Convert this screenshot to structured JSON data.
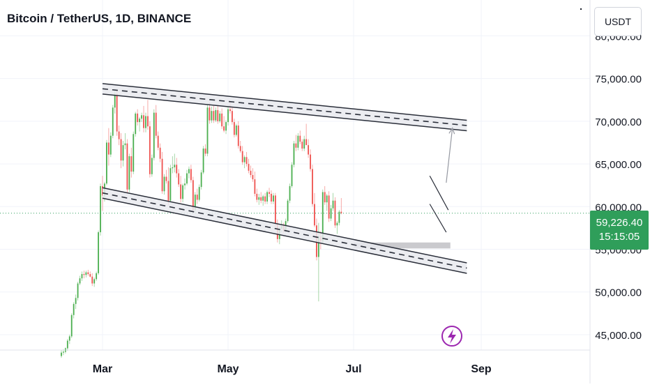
{
  "header": {
    "title": "Bitcoin / TetherUS, 1D, BINANCE"
  },
  "scale_controls": {
    "currency_label": "USDT"
  },
  "last_price": {
    "price": "59,226.40",
    "countdown": "15:15:05"
  },
  "colors": {
    "up": "#26a69a",
    "up_body": "#4caf50",
    "down": "#ef5350",
    "grid": "#f0f3fa",
    "axis_text": "#131722",
    "channel_line": "#2a2e39",
    "price_tag": "#2f9e5a",
    "lightning": "#9c27b0"
  },
  "icons": {
    "lightning": "lightning-icon"
  },
  "chart_data": {
    "type": "candlestick",
    "symbol": "BTCUSDT",
    "interval": "1D",
    "y_ticks": [
      "80,000.00",
      "75,000.00",
      "70,000.00",
      "65,000.00",
      "60,000.00",
      "55,000.00",
      "50,000.00",
      "45,000.00"
    ],
    "y_tick_values": [
      80000,
      75000,
      70000,
      65000,
      60000,
      55000,
      50000,
      45000
    ],
    "x_ticks": [
      "Mar",
      "May",
      "Jul",
      "Sep"
    ],
    "ylim": [
      43200,
      84200
    ],
    "last_price_value": 59226.4,
    "candles": [
      [
        42500,
        43200,
        42300,
        42900
      ],
      [
        42900,
        43300,
        42600,
        43000
      ],
      [
        43000,
        43500,
        42800,
        43400
      ],
      [
        43400,
        44500,
        43100,
        44300
      ],
      [
        44300,
        45000,
        43900,
        44800
      ],
      [
        44800,
        47500,
        44600,
        47300
      ],
      [
        47300,
        48800,
        46900,
        48600
      ],
      [
        48600,
        49700,
        48000,
        49300
      ],
      [
        49300,
        51200,
        49000,
        51000
      ],
      [
        51000,
        51900,
        50800,
        51600
      ],
      [
        51600,
        52400,
        51300,
        52100
      ],
      [
        52100,
        52500,
        51600,
        52000
      ],
      [
        52000,
        52500,
        51700,
        52300
      ],
      [
        52300,
        52600,
        51900,
        52100
      ],
      [
        52100,
        52400,
        51700,
        51800
      ],
      [
        51800,
        52200,
        50700,
        51000
      ],
      [
        51000,
        51700,
        50600,
        51500
      ],
      [
        51500,
        52400,
        51300,
        52200
      ],
      [
        52200,
        57200,
        52000,
        57000
      ],
      [
        57000,
        62700,
        56600,
        62400
      ],
      [
        62400,
        63600,
        59500,
        61300
      ],
      [
        61300,
        62900,
        60600,
        62700
      ],
      [
        62700,
        67800,
        62500,
        67500
      ],
      [
        67500,
        69200,
        64800,
        66100
      ],
      [
        66100,
        68700,
        65800,
        68300
      ],
      [
        68300,
        71900,
        68000,
        71600
      ],
      [
        71600,
        73800,
        70900,
        73200
      ],
      [
        73200,
        73700,
        68300,
        68800
      ],
      [
        68800,
        69500,
        67200,
        67900
      ],
      [
        67900,
        68600,
        64500,
        65400
      ],
      [
        65400,
        67700,
        64700,
        67200
      ],
      [
        67200,
        68600,
        66700,
        67400
      ],
      [
        67400,
        67900,
        61600,
        62000
      ],
      [
        62000,
        66200,
        61700,
        65900
      ],
      [
        65900,
        66900,
        63400,
        64100
      ],
      [
        64100,
        68800,
        63800,
        68500
      ],
      [
        68500,
        71100,
        68200,
        70900
      ],
      [
        70900,
        71400,
        69500,
        69900
      ],
      [
        69900,
        70500,
        68800,
        70300
      ],
      [
        70300,
        71000,
        69900,
        70700
      ],
      [
        70700,
        71800,
        68700,
        69200
      ],
      [
        69200,
        71000,
        68700,
        70600
      ],
      [
        70600,
        72500,
        69000,
        69400
      ],
      [
        69400,
        70000,
        63400,
        63800
      ],
      [
        63800,
        66100,
        63500,
        65700
      ],
      [
        65700,
        71400,
        65400,
        71000
      ],
      [
        71000,
        71900,
        68000,
        68300
      ],
      [
        68300,
        68800,
        66600,
        66900
      ],
      [
        66900,
        67400,
        65200,
        65600
      ],
      [
        65600,
        66400,
        61500,
        61800
      ],
      [
        61800,
        63800,
        61400,
        63500
      ],
      [
        63500,
        64300,
        62700,
        63000
      ],
      [
        63000,
        64600,
        60200,
        60700
      ],
      [
        60700,
        64900,
        60400,
        64500
      ],
      [
        64500,
        65900,
        63900,
        64600
      ],
      [
        64600,
        66200,
        64000,
        64900
      ],
      [
        64900,
        65700,
        63400,
        63900
      ],
      [
        63900,
        64400,
        62300,
        62600
      ],
      [
        62600,
        63600,
        60500,
        60900
      ],
      [
        60900,
        62700,
        60500,
        62500
      ],
      [
        62500,
        63300,
        62000,
        62700
      ],
      [
        62700,
        64300,
        62500,
        63900
      ],
      [
        63900,
        64700,
        63300,
        64400
      ],
      [
        64400,
        64900,
        62800,
        63100
      ],
      [
        63100,
        63500,
        59300,
        59600
      ],
      [
        59600,
        61700,
        59300,
        61400
      ],
      [
        61400,
        62100,
        60300,
        60800
      ],
      [
        60800,
        62600,
        60600,
        62300
      ],
      [
        62300,
        64300,
        62000,
        64000
      ],
      [
        64000,
        67100,
        63800,
        66800
      ],
      [
        66800,
        67300,
        65900,
        66200
      ],
      [
        66200,
        71900,
        65900,
        71600
      ],
      [
        71600,
        72200,
        69700,
        70100
      ],
      [
        70100,
        71700,
        69800,
        71200
      ],
      [
        71200,
        71800,
        69800,
        70100
      ],
      [
        70100,
        71600,
        69900,
        71300
      ],
      [
        71300,
        71900,
        69700,
        70000
      ],
      [
        70000,
        71200,
        69800,
        70900
      ],
      [
        70900,
        71500,
        69100,
        69400
      ],
      [
        69400,
        70600,
        68700,
        68900
      ],
      [
        68900,
        70100,
        68500,
        69900
      ],
      [
        69900,
        71700,
        69500,
        71400
      ],
      [
        71400,
        72300,
        70900,
        71200
      ],
      [
        71200,
        71600,
        69600,
        69900
      ],
      [
        69900,
        70300,
        68100,
        68400
      ],
      [
        68400,
        69700,
        68200,
        69500
      ],
      [
        69500,
        70000,
        66800,
        67100
      ],
      [
        67100,
        67700,
        66300,
        66500
      ],
      [
        66500,
        67100,
        64900,
        65200
      ],
      [
        65200,
        66000,
        64500,
        65800
      ],
      [
        65800,
        66400,
        64700,
        65000
      ],
      [
        65000,
        65600,
        63900,
        64200
      ],
      [
        64200,
        64800,
        63400,
        63700
      ],
      [
        63700,
        64500,
        62900,
        63200
      ],
      [
        63200,
        64100,
        61200,
        61500
      ],
      [
        61500,
        62100,
        60500,
        60800
      ],
      [
        60800,
        61500,
        60200,
        61100
      ],
      [
        61100,
        61700,
        60400,
        60700
      ],
      [
        60700,
        61400,
        60100,
        61200
      ],
      [
        61200,
        61600,
        60300,
        60600
      ],
      [
        60600,
        61900,
        60300,
        61700
      ],
      [
        61700,
        62200,
        61100,
        61500
      ],
      [
        61500,
        61900,
        60300,
        60600
      ],
      [
        60600,
        61600,
        60300,
        61300
      ],
      [
        61300,
        61600,
        57600,
        58000
      ],
      [
        58000,
        58500,
        55800,
        56200
      ],
      [
        56200,
        57700,
        55600,
        57400
      ],
      [
        57400,
        58400,
        57000,
        57800
      ],
      [
        57800,
        58100,
        56900,
        57200
      ],
      [
        57200,
        58600,
        56900,
        58300
      ],
      [
        58300,
        60900,
        58100,
        60700
      ],
      [
        60700,
        62700,
        60400,
        62400
      ],
      [
        62400,
        65200,
        62200,
        64900
      ],
      [
        64900,
        67700,
        64600,
        67400
      ],
      [
        67400,
        68400,
        66500,
        66900
      ],
      [
        66900,
        68600,
        66600,
        68300
      ],
      [
        68300,
        68900,
        67300,
        67600
      ],
      [
        67600,
        67900,
        66500,
        66800
      ],
      [
        66800,
        68300,
        66500,
        67900
      ],
      [
        67900,
        69700,
        67400,
        67200
      ],
      [
        67200,
        67900,
        65700,
        66100
      ],
      [
        66100,
        66700,
        64100,
        64400
      ],
      [
        64400,
        64900,
        60000,
        60300
      ],
      [
        60300,
        61600,
        57600,
        57800
      ],
      [
        57800,
        58600,
        53700,
        54100
      ],
      [
        54100,
        58100,
        48900,
        56500
      ],
      [
        56500,
        57100,
        55000,
        55900
      ],
      [
        55900,
        62000,
        55700,
        61700
      ],
      [
        61700,
        62400,
        60200,
        60500
      ],
      [
        60500,
        61500,
        59500,
        61300
      ],
      [
        61300,
        61800,
        58200,
        58600
      ],
      [
        58600,
        60200,
        58300,
        59800
      ],
      [
        59800,
        61600,
        59500,
        60700
      ],
      [
        60700,
        61100,
        57500,
        57800
      ],
      [
        57800,
        58300,
        56800,
        58100
      ],
      [
        58100,
        59600,
        57800,
        59400
      ],
      [
        59400,
        61000,
        59100,
        59226.4
      ]
    ],
    "drawings": {
      "upper_channel_line": {
        "start": {
          "date": "2024-03-01",
          "value": 73800
        },
        "end": {
          "date": "2024-08-25",
          "value": 69500
        }
      },
      "lower_channel_line": {
        "start": {
          "date": "2024-03-01",
          "value": 61600
        },
        "end": {
          "date": "2024-08-25",
          "value": 52800
        }
      },
      "support_zone": {
        "from_date": "2024-07-01",
        "to_date": "2024-08-17",
        "low": 55100,
        "high": 55800
      },
      "flag_upper": {
        "start": {
          "date": "2024-08-07",
          "value": 63600
        },
        "end": {
          "date": "2024-08-16",
          "value": 59600
        }
      },
      "flag_lower": {
        "start": {
          "date": "2024-08-07",
          "value": 60300
        },
        "end": {
          "date": "2024-08-15",
          "value": 57000
        }
      },
      "target_arrow": {
        "start": {
          "date": "2024-08-15",
          "value": 62800
        },
        "end": {
          "date": "2024-08-18",
          "value": 69200
        }
      }
    }
  }
}
